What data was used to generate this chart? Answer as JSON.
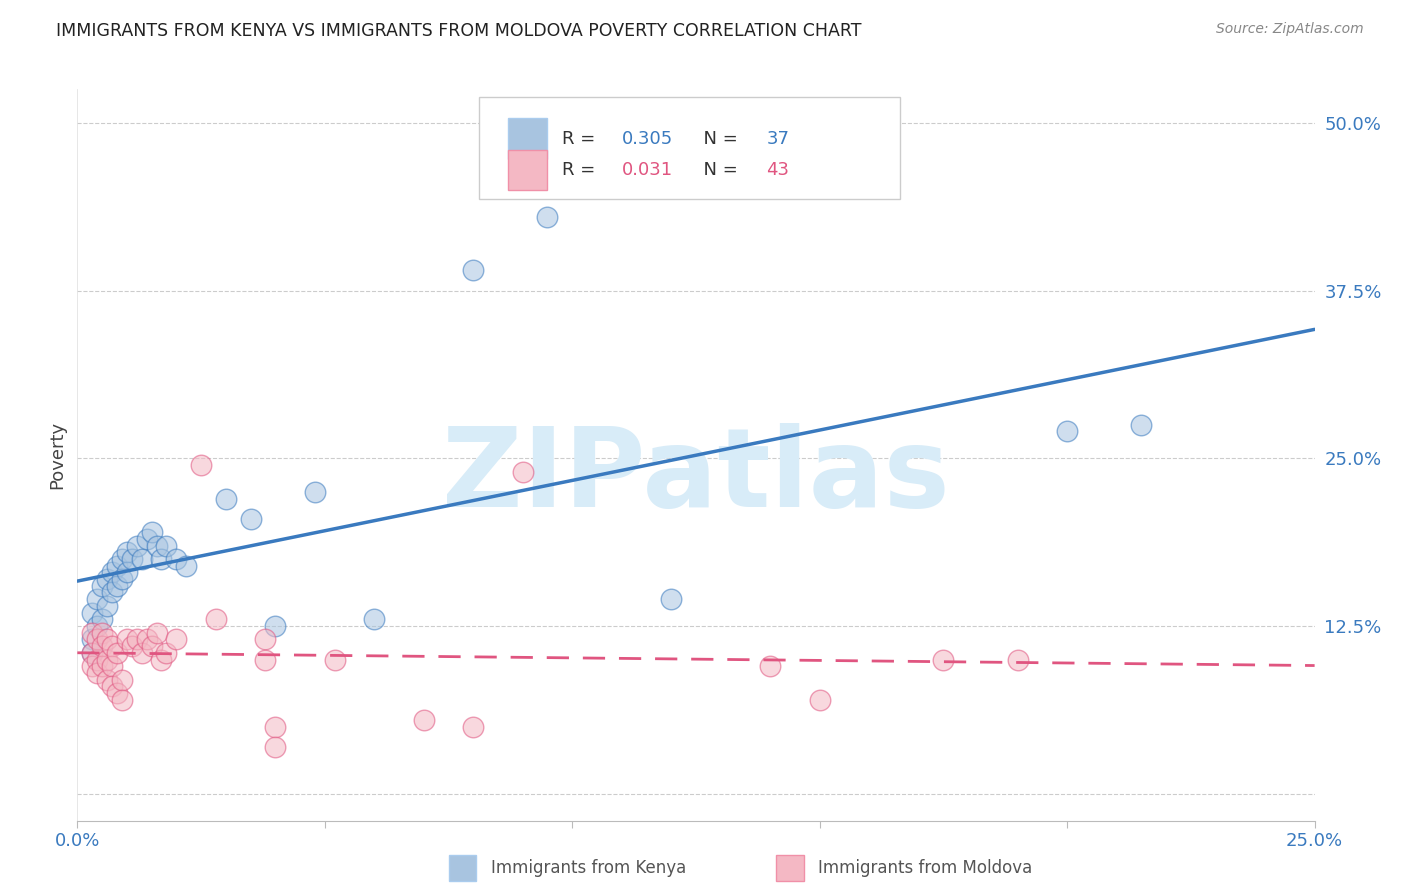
{
  "title": "IMMIGRANTS FROM KENYA VS IMMIGRANTS FROM MOLDOVA POVERTY CORRELATION CHART",
  "source": "Source: ZipAtlas.com",
  "ylabel": "Poverty",
  "x_range": [
    0.0,
    0.25
  ],
  "y_range": [
    -0.02,
    0.525
  ],
  "kenya_color": "#a8c4e0",
  "moldova_color": "#f4b8c4",
  "kenya_R": 0.305,
  "kenya_N": 37,
  "moldova_R": 0.031,
  "moldova_N": 43,
  "kenya_scatter": [
    [
      0.003,
      0.135
    ],
    [
      0.003,
      0.115
    ],
    [
      0.003,
      0.105
    ],
    [
      0.004,
      0.145
    ],
    [
      0.004,
      0.125
    ],
    [
      0.005,
      0.155
    ],
    [
      0.005,
      0.13
    ],
    [
      0.006,
      0.16
    ],
    [
      0.006,
      0.14
    ],
    [
      0.007,
      0.165
    ],
    [
      0.007,
      0.15
    ],
    [
      0.008,
      0.17
    ],
    [
      0.008,
      0.155
    ],
    [
      0.009,
      0.175
    ],
    [
      0.009,
      0.16
    ],
    [
      0.01,
      0.18
    ],
    [
      0.01,
      0.165
    ],
    [
      0.011,
      0.175
    ],
    [
      0.012,
      0.185
    ],
    [
      0.013,
      0.175
    ],
    [
      0.014,
      0.19
    ],
    [
      0.015,
      0.195
    ],
    [
      0.016,
      0.185
    ],
    [
      0.017,
      0.175
    ],
    [
      0.018,
      0.185
    ],
    [
      0.02,
      0.175
    ],
    [
      0.022,
      0.17
    ],
    [
      0.03,
      0.22
    ],
    [
      0.035,
      0.205
    ],
    [
      0.04,
      0.125
    ],
    [
      0.048,
      0.225
    ],
    [
      0.06,
      0.13
    ],
    [
      0.08,
      0.39
    ],
    [
      0.095,
      0.43
    ],
    [
      0.12,
      0.145
    ],
    [
      0.2,
      0.27
    ],
    [
      0.215,
      0.275
    ]
  ],
  "moldova_scatter": [
    [
      0.003,
      0.12
    ],
    [
      0.003,
      0.105
    ],
    [
      0.003,
      0.095
    ],
    [
      0.004,
      0.115
    ],
    [
      0.004,
      0.1
    ],
    [
      0.004,
      0.09
    ],
    [
      0.005,
      0.12
    ],
    [
      0.005,
      0.11
    ],
    [
      0.005,
      0.095
    ],
    [
      0.006,
      0.115
    ],
    [
      0.006,
      0.1
    ],
    [
      0.006,
      0.085
    ],
    [
      0.007,
      0.11
    ],
    [
      0.007,
      0.095
    ],
    [
      0.007,
      0.08
    ],
    [
      0.008,
      0.105
    ],
    [
      0.008,
      0.075
    ],
    [
      0.009,
      0.085
    ],
    [
      0.009,
      0.07
    ],
    [
      0.01,
      0.115
    ],
    [
      0.011,
      0.11
    ],
    [
      0.012,
      0.115
    ],
    [
      0.013,
      0.105
    ],
    [
      0.014,
      0.115
    ],
    [
      0.015,
      0.11
    ],
    [
      0.016,
      0.12
    ],
    [
      0.017,
      0.1
    ],
    [
      0.018,
      0.105
    ],
    [
      0.02,
      0.115
    ],
    [
      0.025,
      0.245
    ],
    [
      0.028,
      0.13
    ],
    [
      0.038,
      0.115
    ],
    [
      0.038,
      0.1
    ],
    [
      0.04,
      0.05
    ],
    [
      0.04,
      0.035
    ],
    [
      0.052,
      0.1
    ],
    [
      0.07,
      0.055
    ],
    [
      0.08,
      0.05
    ],
    [
      0.09,
      0.24
    ],
    [
      0.14,
      0.095
    ],
    [
      0.15,
      0.07
    ],
    [
      0.175,
      0.1
    ],
    [
      0.19,
      0.1
    ]
  ],
  "kenya_line_color": "#3a7abf",
  "moldova_line_color": "#e05580",
  "watermark_text": "ZIPatlas",
  "watermark_color": "#d8ecf8",
  "y_ticks": [
    0.0,
    0.125,
    0.25,
    0.375,
    0.5
  ],
  "y_tick_labels": [
    "",
    "12.5%",
    "25.0%",
    "37.5%",
    "50.0%"
  ],
  "x_ticks": [
    0.0,
    0.05,
    0.1,
    0.15,
    0.2,
    0.25
  ],
  "x_tick_labels": [
    "0.0%",
    "",
    "",
    "",
    "",
    "25.0%"
  ],
  "tick_color": "#3a7abf"
}
